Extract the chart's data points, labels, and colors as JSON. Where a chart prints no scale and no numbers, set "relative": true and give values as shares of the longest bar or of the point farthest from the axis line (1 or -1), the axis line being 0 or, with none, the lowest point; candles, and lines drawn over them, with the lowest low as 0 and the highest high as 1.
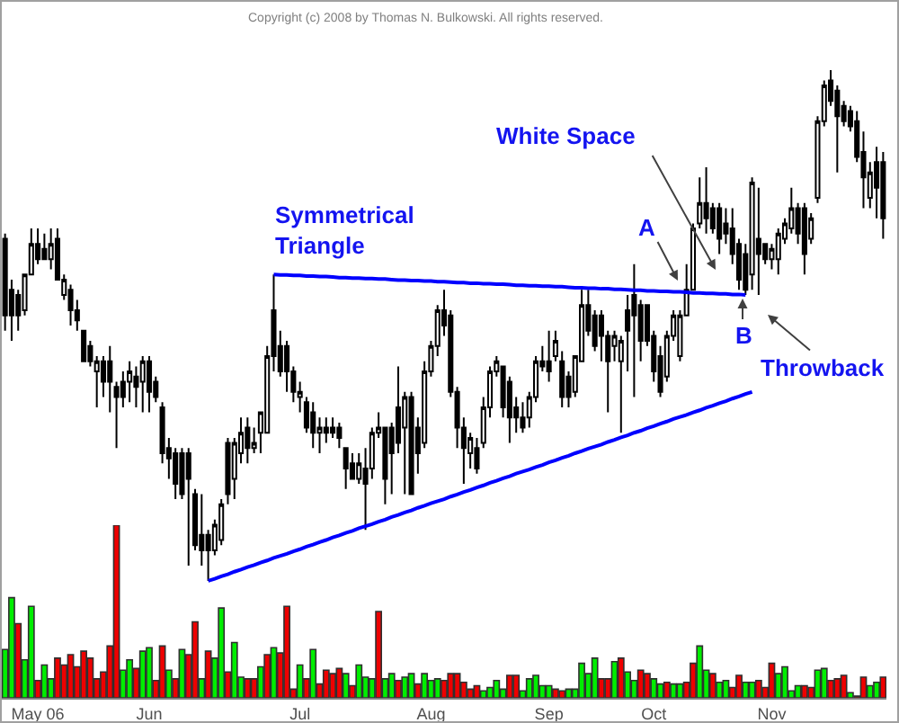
{
  "chart_data": [
    {
      "type": "candlestick",
      "relative": true,
      "color": "#000000",
      "categories": [
        null,
        null,
        null,
        null,
        null,
        null,
        null,
        null,
        null,
        null,
        null,
        null,
        null,
        null,
        null,
        null,
        null,
        null,
        null,
        null,
        null,
        null,
        null,
        null,
        null,
        null,
        null,
        null,
        null,
        null,
        null,
        null,
        null,
        null,
        null,
        null,
        null,
        null,
        null,
        null,
        null,
        null,
        null,
        null,
        null,
        null,
        null,
        null,
        null,
        null,
        null,
        null,
        null,
        null,
        null,
        null,
        null,
        null,
        null,
        null,
        null,
        null,
        null,
        null,
        null,
        null,
        null,
        null,
        null,
        null,
        null,
        null,
        null,
        null,
        null,
        null,
        null,
        null,
        null,
        null,
        null,
        null,
        null,
        null,
        null,
        null,
        null,
        null,
        null,
        null,
        null,
        null,
        null,
        null,
        null,
        null,
        null,
        null,
        null,
        null,
        null,
        null,
        null,
        null,
        null,
        null,
        null,
        null,
        null,
        null,
        null,
        null,
        null,
        null,
        null,
        null,
        null,
        null,
        null,
        null,
        null,
        null,
        null,
        null,
        null,
        null,
        null,
        null,
        null,
        null,
        null,
        null,
        null,
        null,
        null
      ],
      "ohlc": [
        [
          0.67,
          0.68,
          0.49,
          0.52
        ],
        [
          0.57,
          0.59,
          0.47,
          0.52
        ],
        [
          0.56,
          0.57,
          0.49,
          0.52
        ],
        [
          0.53,
          0.6,
          0.52,
          0.6
        ],
        [
          0.6,
          0.69,
          0.6,
          0.66
        ],
        [
          0.66,
          0.69,
          0.62,
          0.63
        ],
        [
          0.65,
          0.68,
          0.63,
          0.63
        ],
        [
          0.63,
          0.69,
          0.61,
          0.66
        ],
        [
          0.67,
          0.69,
          0.59,
          0.59
        ],
        [
          0.56,
          0.6,
          0.55,
          0.59
        ],
        [
          0.57,
          0.58,
          0.5,
          0.53
        ],
        [
          0.53,
          0.55,
          0.49,
          0.51
        ],
        [
          0.49,
          0.49,
          0.43,
          0.43
        ],
        [
          0.46,
          0.47,
          0.42,
          0.43
        ],
        [
          0.41,
          0.44,
          0.34,
          0.43
        ],
        [
          0.43,
          0.44,
          0.36,
          0.39
        ],
        [
          0.43,
          0.46,
          0.33,
          0.39
        ],
        [
          0.38,
          0.39,
          0.26,
          0.36
        ],
        [
          0.39,
          0.41,
          0.34,
          0.36
        ],
        [
          0.39,
          0.43,
          0.35,
          0.41
        ],
        [
          0.4,
          0.42,
          0.34,
          0.38
        ],
        [
          0.39,
          0.44,
          0.33,
          0.43
        ],
        [
          0.43,
          0.44,
          0.33,
          0.37
        ],
        [
          0.39,
          0.4,
          0.35,
          0.36
        ],
        [
          0.34,
          0.35,
          0.23,
          0.25
        ],
        [
          0.26,
          0.28,
          0.2,
          0.24
        ],
        [
          0.25,
          0.26,
          0.16,
          0.19
        ],
        [
          0.25,
          0.26,
          0.16,
          0.17
        ],
        [
          0.25,
          0.26,
          0.03,
          0.2
        ],
        [
          0.17,
          0.18,
          0.06,
          0.07
        ],
        [
          0.09,
          0.17,
          0.03,
          0.06
        ],
        [
          0.09,
          0.1,
          0,
          0.06
        ],
        [
          0.06,
          0.12,
          0.05,
          0.11
        ],
        [
          0.08,
          0.16,
          0.07,
          0.15
        ],
        [
          0.27,
          0.28,
          0.15,
          0.17
        ],
        [
          0.2,
          0.28,
          0.16,
          0.27
        ],
        [
          0.25,
          0.32,
          0.23,
          0.29
        ],
        [
          0.3,
          0.32,
          0.23,
          0.26
        ],
        [
          0.26,
          0.3,
          0.25,
          0.27
        ],
        [
          0.29,
          0.33,
          0.25,
          0.33
        ],
        [
          0.29,
          0.46,
          0.29,
          0.44
        ],
        [
          0.53,
          0.6,
          0.41,
          0.44
        ],
        [
          0.46,
          0.49,
          0.4,
          0.41
        ],
        [
          0.46,
          0.47,
          0.37,
          0.41
        ],
        [
          0.41,
          0.42,
          0.35,
          0.37
        ],
        [
          0.36,
          0.39,
          0.33,
          0.37
        ],
        [
          0.35,
          0.36,
          0.29,
          0.3
        ],
        [
          0.33,
          0.35,
          0.26,
          0.29
        ],
        [
          0.29,
          0.32,
          0.25,
          0.3
        ],
        [
          0.3,
          0.32,
          0.27,
          0.29
        ],
        [
          0.3,
          0.32,
          0.28,
          0.29
        ],
        [
          0.3,
          0.31,
          0.26,
          0.28
        ],
        [
          0.26,
          0.26,
          0.18,
          0.22
        ],
        [
          0.23,
          0.25,
          0.2,
          0.2
        ],
        [
          0.2,
          0.25,
          0.19,
          0.23
        ],
        [
          0.22,
          0.26,
          0.1,
          0.19
        ],
        [
          0.22,
          0.3,
          0.2,
          0.29
        ],
        [
          0.29,
          0.33,
          0.28,
          0.3
        ],
        [
          0.3,
          0.3,
          0.15,
          0.2
        ],
        [
          0.3,
          0.31,
          0.17,
          0.25
        ],
        [
          0.34,
          0.42,
          0.25,
          0.27
        ],
        [
          0.3,
          0.37,
          0.17,
          0.36
        ],
        [
          0.36,
          0.37,
          0.17,
          0.17
        ],
        [
          0.3,
          0.32,
          0.21,
          0.25
        ],
        [
          0.27,
          0.43,
          0.26,
          0.41
        ],
        [
          0.41,
          0.47,
          0.4,
          0.46
        ],
        [
          0.46,
          0.54,
          0.44,
          0.53
        ],
        [
          0.53,
          0.57,
          0.48,
          0.5
        ],
        [
          0.52,
          0.53,
          0.36,
          0.37
        ],
        [
          0.37,
          0.38,
          0.26,
          0.3
        ],
        [
          0.3,
          0.32,
          0.19,
          0.26
        ],
        [
          0.25,
          0.29,
          0.22,
          0.28
        ],
        [
          0.26,
          0.28,
          0.21,
          0.22
        ],
        [
          0.27,
          0.36,
          0.26,
          0.34
        ],
        [
          0.34,
          0.42,
          0.32,
          0.41
        ],
        [
          0.41,
          0.44,
          0.4,
          0.43
        ],
        [
          0.42,
          0.42,
          0.32,
          0.34
        ],
        [
          0.39,
          0.4,
          0.27,
          0.32
        ],
        [
          0.34,
          0.36,
          0.29,
          0.32
        ],
        [
          0.32,
          0.35,
          0.29,
          0.3
        ],
        [
          0.32,
          0.37,
          0.3,
          0.36
        ],
        [
          0.36,
          0.44,
          0.35,
          0.43
        ],
        [
          0.43,
          0.46,
          0.41,
          0.42
        ],
        [
          0.43,
          0.49,
          0.39,
          0.41
        ],
        [
          0.44,
          0.49,
          0.43,
          0.47
        ],
        [
          0.43,
          0.45,
          0.34,
          0.36
        ],
        [
          0.4,
          0.41,
          0.34,
          0.36
        ],
        [
          0.37,
          0.44,
          0.36,
          0.44
        ],
        [
          0.43,
          0.57,
          0.43,
          0.54
        ],
        [
          0.54,
          0.57,
          0.48,
          0.49
        ],
        [
          0.52,
          0.53,
          0.45,
          0.46
        ],
        [
          0.52,
          0.53,
          0.43,
          0.48
        ],
        [
          0.48,
          0.49,
          0.33,
          0.43
        ],
        [
          0.46,
          0.49,
          0.43,
          0.48
        ],
        [
          0.43,
          0.48,
          0.29,
          0.47
        ],
        [
          0.53,
          0.56,
          0.41,
          0.49
        ],
        [
          0.56,
          0.62,
          0.36,
          0.52
        ],
        [
          0.54,
          0.55,
          0.43,
          0.47
        ],
        [
          0.54,
          0.54,
          0.46,
          0.47
        ],
        [
          0.48,
          0.49,
          0.39,
          0.41
        ],
        [
          0.44,
          0.46,
          0.36,
          0.37
        ],
        [
          0.4,
          0.49,
          0.39,
          0.48
        ],
        [
          0.48,
          0.53,
          0.47,
          0.52
        ],
        [
          0.44,
          0.53,
          0.43,
          0.52
        ],
        [
          0.52,
          0.62,
          0.52,
          0.57
        ],
        [
          0.57,
          0.7,
          0.57,
          0.69
        ],
        [
          0.7,
          0.79,
          0.69,
          0.74
        ],
        [
          0.74,
          0.81,
          0.68,
          0.71
        ],
        [
          0.73,
          0.74,
          0.68,
          0.69
        ],
        [
          0.73,
          0.74,
          0.64,
          0.67
        ],
        [
          0.7,
          0.73,
          0.66,
          0.68
        ],
        [
          0.69,
          0.73,
          0.62,
          0.64
        ],
        [
          0.66,
          0.67,
          0.57,
          0.59
        ],
        [
          0.64,
          0.66,
          0.56,
          0.57
        ],
        [
          0.6,
          0.79,
          0.57,
          0.78
        ],
        [
          0.67,
          0.77,
          0.56,
          0.64
        ],
        [
          0.66,
          0.66,
          0.62,
          0.63
        ],
        [
          0.63,
          0.66,
          0.61,
          0.65
        ],
        [
          0.63,
          0.69,
          0.6,
          0.68
        ],
        [
          0.67,
          0.71,
          0.66,
          0.7
        ],
        [
          0.69,
          0.77,
          0.68,
          0.73
        ],
        [
          0.73,
          0.74,
          0.66,
          0.68
        ],
        [
          0.73,
          0.74,
          0.6,
          0.64
        ],
        [
          0.67,
          0.72,
          0.66,
          0.71
        ],
        [
          0.75,
          0.91,
          0.74,
          0.9
        ],
        [
          0.9,
          0.98,
          0.89,
          0.97
        ],
        [
          0.98,
          1,
          0.93,
          0.94
        ],
        [
          0.96,
          0.97,
          0.8,
          0.91
        ],
        [
          0.93,
          0.94,
          0.89,
          0.9
        ],
        [
          0.92,
          0.93,
          0.88,
          0.89
        ],
        [
          0.9,
          0.92,
          0.82,
          0.83
        ],
        [
          0.84,
          0.88,
          0.73,
          0.79
        ],
        [
          0.75,
          0.82,
          0.73,
          0.8
        ],
        [
          0.82,
          0.85,
          0.71,
          0.77
        ],
        [
          0.82,
          0.84,
          0.67,
          0.71
        ]
      ],
      "series": [
        {
          "type": "line",
          "color": "#0000ff",
          "values": [
            null,
            null,
            null,
            null,
            null,
            null,
            null,
            null,
            null,
            null,
            null,
            null,
            null,
            null,
            null,
            null,
            null,
            null,
            null,
            null,
            null,
            null,
            null,
            null,
            null,
            null,
            null,
            null,
            null,
            null,
            null,
            null,
            null,
            null,
            null,
            null,
            null,
            null,
            null,
            null,
            null,
            0.6,
            0.599,
            0.599,
            0.598,
            0.598,
            0.597,
            0.597,
            0.596,
            0.596,
            0.595,
            0.594,
            0.594,
            0.593,
            0.593,
            0.592,
            0.592,
            0.591,
            0.591,
            0.59,
            0.589,
            0.589,
            0.588,
            0.588,
            0.587,
            0.587,
            0.586,
            0.586,
            0.585,
            0.584,
            0.584,
            0.583,
            0.583,
            0.582,
            0.582,
            0.581,
            0.581,
            0.58,
            0.579,
            0.579,
            0.578,
            0.578,
            0.577,
            0.577,
            0.576,
            0.576,
            0.575,
            0.574,
            0.574,
            0.573,
            0.573,
            0.572,
            0.572,
            0.571,
            0.571,
            0.57,
            0.569,
            0.569,
            0.568,
            0.568,
            0.567,
            0.567,
            0.566,
            0.566,
            0.565,
            0.564,
            0.564,
            0.563,
            0.563,
            0.562,
            0.562,
            0.561,
            0.561,
            0.56,
            null,
            null,
            null,
            null,
            null,
            null,
            null,
            null,
            null,
            null,
            null,
            null,
            null,
            null,
            null,
            null,
            null,
            null,
            null,
            null,
            null
          ]
        },
        {
          "type": "line",
          "color": "#0000ff",
          "values": [
            null,
            null,
            null,
            null,
            null,
            null,
            null,
            null,
            null,
            null,
            null,
            null,
            null,
            null,
            null,
            null,
            null,
            null,
            null,
            null,
            null,
            null,
            null,
            null,
            null,
            null,
            null,
            null,
            null,
            null,
            null,
            0,
            0.004,
            0.009,
            0.013,
            0.018,
            0.022,
            0.027,
            0.031,
            0.036,
            0.04,
            0.045,
            0.049,
            0.053,
            0.058,
            0.062,
            0.067,
            0.071,
            0.076,
            0.08,
            0.085,
            0.089,
            0.094,
            0.098,
            0.103,
            0.107,
            0.111,
            0.116,
            0.12,
            0.125,
            0.129,
            0.134,
            0.138,
            0.143,
            0.147,
            0.152,
            0.156,
            0.16,
            0.165,
            0.169,
            0.174,
            0.178,
            0.183,
            0.187,
            0.192,
            0.196,
            0.201,
            0.205,
            0.21,
            0.214,
            0.218,
            0.223,
            0.227,
            0.232,
            0.236,
            0.241,
            0.245,
            0.25,
            0.254,
            0.259,
            0.263,
            0.267,
            0.272,
            0.276,
            0.281,
            0.285,
            0.29,
            0.294,
            0.299,
            0.303,
            0.308,
            0.312,
            0.317,
            0.321,
            0.325,
            0.33,
            0.334,
            0.339,
            0.343,
            0.348,
            0.352,
            0.357,
            0.361,
            0.366,
            0.37,
            null,
            null,
            null,
            null,
            null,
            null,
            null,
            null,
            null,
            null,
            null,
            null,
            null,
            null,
            null,
            null,
            null,
            null,
            null,
            null
          ]
        }
      ],
      "annotations": [
        "Copyright (c) 2008 by Thomas N. Bulkowski. All rights reserved.",
        "Symmetrical\nTriangle",
        "White Space",
        "A",
        "B",
        "Throwback"
      ]
    },
    {
      "type": "bar",
      "relative": true,
      "categories": [
        null,
        null,
        null,
        null,
        null,
        "May 06",
        null,
        null,
        null,
        null,
        null,
        null,
        null,
        null,
        null,
        null,
        null,
        null,
        null,
        null,
        null,
        null,
        "Jun",
        null,
        null,
        null,
        null,
        null,
        null,
        null,
        null,
        null,
        null,
        null,
        null,
        null,
        null,
        null,
        null,
        null,
        null,
        null,
        null,
        null,
        null,
        "Jul",
        null,
        null,
        null,
        null,
        null,
        null,
        null,
        null,
        null,
        null,
        null,
        null,
        null,
        null,
        null,
        null,
        null,
        null,
        null,
        "Aug",
        null,
        null,
        null,
        null,
        null,
        null,
        null,
        null,
        null,
        null,
        null,
        null,
        null,
        null,
        null,
        null,
        null,
        "Sep",
        null,
        null,
        null,
        null,
        null,
        null,
        null,
        null,
        null,
        null,
        null,
        null,
        null,
        null,
        null,
        "Oct",
        null,
        null,
        null,
        null,
        null,
        null,
        null,
        null,
        null,
        null,
        null,
        null,
        null,
        null,
        null,
        null,
        null,
        "Nov",
        null,
        null,
        null,
        null,
        null,
        null,
        null,
        null,
        null,
        null,
        null,
        null,
        null,
        null,
        null,
        null,
        null
      ],
      "values": [
        0.28,
        0.58,
        0.43,
        0.22,
        0.53,
        0.1,
        0.19,
        0.11,
        0.23,
        0.19,
        0.25,
        0.18,
        0.27,
        0.23,
        0.11,
        0.15,
        0.3,
        1,
        0.16,
        0.22,
        0.17,
        0.27,
        0.29,
        0.1,
        0.3,
        0.16,
        0.11,
        0.28,
        0.25,
        0.44,
        0.11,
        0.27,
        0.23,
        0.52,
        0.15,
        0.32,
        0.12,
        0.11,
        0.11,
        0.18,
        0.25,
        0.29,
        0.26,
        0.53,
        0.05,
        0.19,
        0.11,
        0.28,
        0.08,
        0.16,
        0.14,
        0.17,
        0.14,
        0.07,
        0.19,
        0.12,
        0.11,
        0.5,
        0.11,
        0.14,
        0.1,
        0.12,
        0.14,
        0.08,
        0.14,
        0.1,
        0.11,
        0.1,
        0.14,
        0.14,
        0.09,
        0.05,
        0.07,
        0.04,
        0.06,
        0.1,
        0.05,
        0.13,
        0.13,
        0.04,
        0.11,
        0.13,
        0.07,
        0.07,
        0.05,
        0.04,
        0.05,
        0.05,
        0.2,
        0.14,
        0.23,
        0.11,
        0.11,
        0.21,
        0.23,
        0.15,
        0.1,
        0.16,
        0.14,
        0.11,
        0.08,
        0.09,
        0.08,
        0.08,
        0.09,
        0.2,
        0.3,
        0.16,
        0.14,
        0.09,
        0.1,
        0.06,
        0.13,
        0.09,
        0.09,
        0.1,
        0.06,
        0.2,
        0.14,
        0.18,
        0.04,
        0.07,
        0.07,
        0.06,
        0.16,
        0.17,
        0.1,
        0.11,
        0.13,
        0.03,
        0.01,
        0.12,
        0.07,
        0.09,
        0.12
      ],
      "colors": [
        "#00ee00",
        "#00ee00",
        "#ee0000",
        "#00ee00",
        "#00ee00",
        "#ee0000",
        "#00ee00",
        "#00ee00",
        "#ee0000",
        "#ee0000",
        "#ee0000",
        "#ee0000",
        "#ee0000",
        "#ee0000",
        "#ee0000",
        "#ee0000",
        "#ee0000",
        "#ee0000",
        "#00ee00",
        "#00ee00",
        "#ee0000",
        "#00ee00",
        "#00ee00",
        "#ee0000",
        "#ee0000",
        "#00ee00",
        "#ee0000",
        "#00ee00",
        "#ee0000",
        "#ee0000",
        "#00ee00",
        "#ee0000",
        "#00ee00",
        "#00ee00",
        "#ee0000",
        "#00ee00",
        "#00ee00",
        "#ee0000",
        "#ee0000",
        "#00ee00",
        "#ee0000",
        "#00ee00",
        "#ee0000",
        "#ee0000",
        "#ee0000",
        "#00ee00",
        "#ee0000",
        "#00ee00",
        "#ee0000",
        "#ee0000",
        "#ee0000",
        "#ee0000",
        "#00ee00",
        "#ee0000",
        "#00ee00",
        "#00ee00",
        "#00ee00",
        "#ee0000",
        "#00ee00",
        "#00ee00",
        "#ee0000",
        "#00ee00",
        "#00ee00",
        "#ee0000",
        "#00ee00",
        "#00ee00",
        "#00ee00",
        "#ee0000",
        "#ee0000",
        "#ee0000",
        "#ee0000",
        "#ee0000",
        "#ee0000",
        "#00ee00",
        "#00ee00",
        "#00ee00",
        "#00ee00",
        "#ee0000",
        "#ee0000",
        "#00ee00",
        "#00ee00",
        "#00ee00",
        "#00ee00",
        "#00ee00",
        "#ee0000",
        "#ee0000",
        "#00ee00",
        "#00ee00",
        "#00ee00",
        "#00ee00",
        "#00ee00",
        "#ee0000",
        "#ee0000",
        "#00ee00",
        "#ee0000",
        "#00ee00",
        "#00ee00",
        "#ee0000",
        "#ee0000",
        "#00ee00",
        "#00ee00",
        "#ee0000",
        "#00ee00",
        "#00ee00",
        "#ee0000",
        "#ee0000",
        "#00ee00",
        "#00ee00",
        "#ee0000",
        "#00ee00",
        "#00ee00",
        "#ee0000",
        "#ee0000",
        "#00ee00",
        "#00ee00",
        "#ee0000",
        "#ee0000",
        "#ee0000",
        "#00ee00",
        "#00ee00",
        "#00ee00",
        "#00ee00",
        "#ee0000",
        "#ee0000",
        "#00ee00",
        "#00ee00",
        "#ee0000",
        "#ee0000",
        "#ee0000",
        "#00ee00",
        "#ee0000",
        "#ee0000",
        "#00ee00",
        "#00ee00",
        "#ee0000"
      ]
    }
  ]
}
